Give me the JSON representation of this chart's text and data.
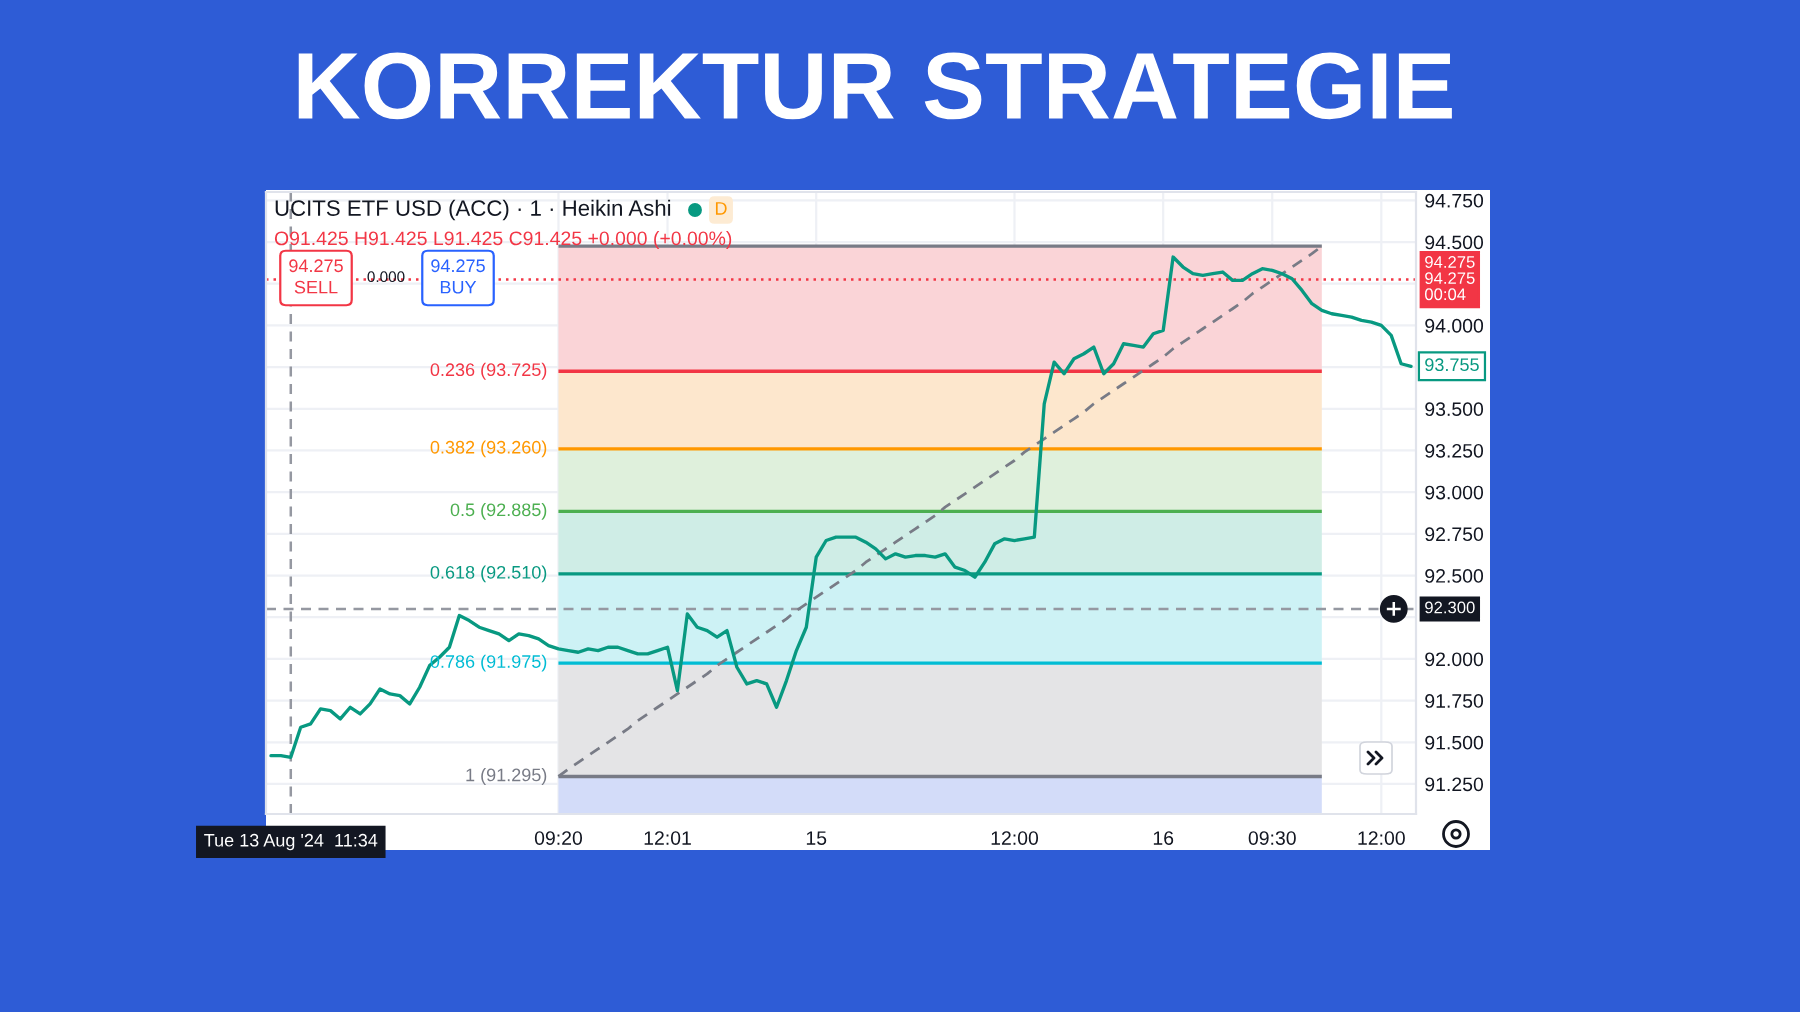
{
  "chart_data": {
    "type": "line",
    "title": "KORREKTUR STRATEGIE",
    "subtitle": "UCITS ETF USD (ACC) · 1 · Heikin Ashi",
    "categories": [
      null,
      null,
      "Tue 13 Aug '24  11:34",
      null,
      null,
      null,
      null,
      null,
      null,
      null,
      null,
      null,
      null,
      null,
      null,
      null,
      null,
      null,
      null,
      null,
      null,
      null,
      null,
      null,
      null,
      null,
      null,
      null,
      null,
      "09:20",
      null,
      null,
      null,
      null,
      null,
      null,
      null,
      null,
      null,
      null,
      "12:01",
      null,
      null,
      null,
      null,
      null,
      null,
      null,
      null,
      null,
      null,
      null,
      null,
      null,
      null,
      "15",
      null,
      null,
      null,
      null,
      null,
      null,
      null,
      null,
      null,
      null,
      null,
      null,
      null,
      null,
      null,
      null,
      null,
      null,
      null,
      "12:00",
      null,
      null,
      null,
      null,
      null,
      null,
      null,
      null,
      null,
      null,
      null,
      null,
      null,
      null,
      "16",
      null,
      null,
      null,
      null,
      null,
      null,
      null,
      null,
      null,
      null,
      "09:30",
      null,
      null,
      null,
      null,
      null,
      null,
      null,
      null,
      null,
      null,
      "12:00",
      null,
      null,
      null
    ],
    "ylim": [
      91.07,
      94.8
    ],
    "yticks": [
      {
        "value": 94.75,
        "label": "94.750"
      },
      {
        "value": 94.5,
        "label": "94.500"
      },
      {
        "value": 94.25,
        "label": null
      },
      {
        "value": 94.0,
        "label": "94.000"
      },
      {
        "value": 93.75,
        "label": null
      },
      {
        "value": 93.5,
        "label": "93.500"
      },
      {
        "value": 93.25,
        "label": "93.250"
      },
      {
        "value": 93.0,
        "label": "93.000"
      },
      {
        "value": 92.75,
        "label": "92.750"
      },
      {
        "value": 92.5,
        "label": "92.500"
      },
      {
        "value": 92.25,
        "label": null
      },
      {
        "value": 92.0,
        "label": "92.000"
      },
      {
        "value": 91.75,
        "label": "91.750"
      },
      {
        "value": 91.5,
        "label": "91.500"
      },
      {
        "value": 91.25,
        "label": "91.250"
      }
    ],
    "grid": true,
    "series": [
      {
        "color": "#089981",
        "values": [
          91.42,
          91.42,
          91.41,
          91.59,
          91.61,
          91.7,
          91.69,
          91.64,
          91.71,
          91.67,
          91.73,
          91.82,
          91.79,
          91.78,
          91.73,
          91.83,
          91.96,
          92.01,
          92.07,
          92.26,
          92.23,
          92.19,
          92.17,
          92.15,
          92.11,
          92.15,
          92.14,
          92.12,
          92.08,
          92.06,
          92.05,
          92.04,
          92.06,
          92.05,
          92.07,
          92.07,
          92.05,
          92.03,
          92.03,
          92.05,
          92.07,
          91.81,
          92.27,
          92.19,
          92.17,
          92.13,
          92.17,
          91.95,
          91.85,
          91.87,
          91.85,
          91.71,
          91.87,
          92.05,
          92.19,
          92.61,
          92.71,
          92.73,
          92.73,
          92.73,
          92.7,
          92.66,
          92.6,
          92.63,
          92.61,
          92.62,
          92.62,
          92.61,
          92.63,
          92.55,
          92.53,
          92.49,
          92.58,
          92.69,
          92.72,
          92.71,
          92.72,
          92.73,
          93.53,
          93.78,
          93.71,
          93.8,
          93.83,
          93.87,
          93.71,
          93.77,
          93.89,
          93.88,
          93.87,
          93.95,
          93.97,
          94.41,
          94.35,
          94.31,
          94.3,
          94.31,
          94.32,
          94.27,
          94.27,
          94.31,
          94.34,
          94.33,
          94.31,
          94.28,
          94.21,
          94.13,
          94.09,
          94.07,
          94.06,
          94.05,
          94.03,
          94.02,
          94.0,
          93.94,
          93.77,
          93.755
        ]
      },
      {
        "color": "#787b86",
        "line_style": "dashed",
        "values": [
          null,
          null,
          null,
          null,
          null,
          null,
          null,
          null,
          null,
          null,
          null,
          null,
          null,
          null,
          null,
          null,
          null,
          null,
          null,
          null,
          null,
          null,
          null,
          null,
          null,
          null,
          null,
          null,
          null,
          91.295,
          91.34,
          91.38,
          91.42,
          91.46,
          91.5,
          91.54,
          91.58,
          91.63,
          91.67,
          91.71,
          91.75,
          91.79,
          91.83,
          91.87,
          91.91,
          91.96,
          92.0,
          92.04,
          92.08,
          92.12,
          92.16,
          92.2,
          92.24,
          92.29,
          92.33,
          92.37,
          92.41,
          92.45,
          92.49,
          92.53,
          92.58,
          92.62,
          92.66,
          92.7,
          92.74,
          92.78,
          92.82,
          92.86,
          92.91,
          92.95,
          92.99,
          93.03,
          93.07,
          93.11,
          93.15,
          93.19,
          93.24,
          93.28,
          93.32,
          93.36,
          93.4,
          93.44,
          93.48,
          93.53,
          93.57,
          93.61,
          93.65,
          93.69,
          93.73,
          93.77,
          93.81,
          93.86,
          93.9,
          93.94,
          93.98,
          94.02,
          94.06,
          94.1,
          94.14,
          94.19,
          94.23,
          94.27,
          94.31,
          94.35,
          94.39,
          94.43,
          94.475,
          null,
          null,
          null,
          null,
          null,
          null,
          null,
          null,
          null
        ]
      }
    ],
    "bands": [
      {
        "axis": "y",
        "from": 93.725,
        "to": 94.475,
        "color": "#fad4d7"
      },
      {
        "axis": "y",
        "from": 93.26,
        "to": 93.725,
        "color": "#fde7cd"
      },
      {
        "axis": "y",
        "from": 92.885,
        "to": 93.26,
        "color": "#dff0dc"
      },
      {
        "axis": "y",
        "from": 92.51,
        "to": 92.885,
        "color": "#cfede6"
      },
      {
        "axis": "y",
        "from": 91.975,
        "to": 92.51,
        "color": "#cdf2f5"
      },
      {
        "axis": "y",
        "from": 91.295,
        "to": 91.975,
        "color": "#e4e4e6"
      },
      {
        "axis": "y",
        "from": 91.07,
        "to": 91.295,
        "color": "#d3dcf9"
      }
    ],
    "ref_lines": [
      {
        "axis": "y",
        "value": 94.475,
        "label": null,
        "color": "#787b86"
      },
      {
        "axis": "y",
        "value": 93.725,
        "label": "0.236 (93.725)",
        "color": "#f23645"
      },
      {
        "axis": "y",
        "value": 93.26,
        "label": "0.382 (93.260)",
        "color": "#ff9800"
      },
      {
        "axis": "y",
        "value": 92.885,
        "label": "0.5 (92.885)",
        "color": "#4caf50"
      },
      {
        "axis": "y",
        "value": 92.51,
        "label": "0.618 (92.510)",
        "color": "#089981"
      },
      {
        "axis": "y",
        "value": 91.975,
        "label": "0.786 (91.975)",
        "color": "#00bcd4"
      },
      {
        "axis": "y",
        "value": 91.295,
        "label": "1 (91.295)",
        "color": "#787b86"
      },
      {
        "axis": "y",
        "value": 94.275,
        "label": "94.275\n94.275\n00:04",
        "color": "#f23645",
        "line_style": "dotted"
      },
      {
        "axis": "y",
        "value": 92.3,
        "label": "92.300",
        "color": "#9598a1",
        "line_style": "dashed"
      },
      {
        "axis": "x",
        "value": "Tue 13 Aug '24  11:34",
        "color": "#9598a1",
        "line_style": "dashed"
      }
    ],
    "annotations": [
      "O91.425 H91.425 L91.425 C91.425 +0.000 (+0.00%)",
      "D",
      "94.275\nSELL",
      "0.000",
      "94.275\nBUY",
      "93.755"
    ]
  }
}
